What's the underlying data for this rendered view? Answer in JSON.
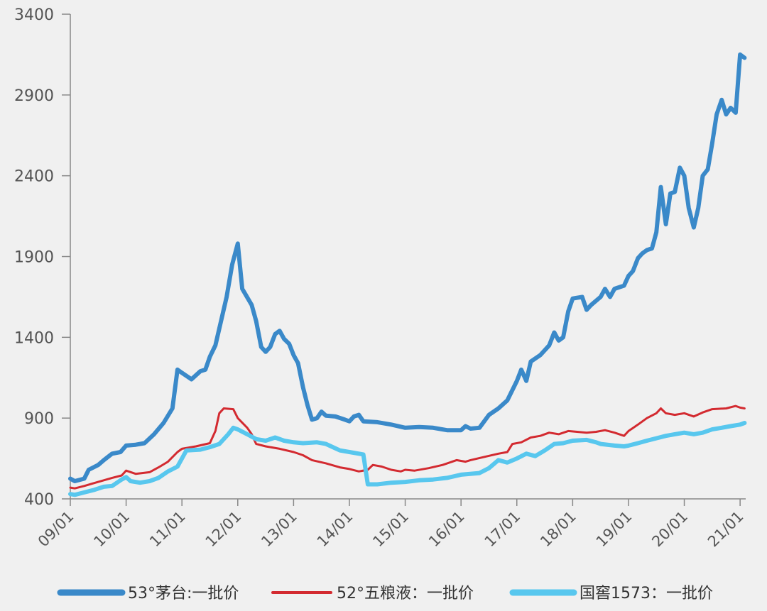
{
  "chart_data": {
    "type": "line",
    "title": "",
    "xlabel": "",
    "ylabel": "",
    "ylim": [
      400,
      3400
    ],
    "yticks": [
      "400",
      "900",
      "1400",
      "1900",
      "2400",
      "2900",
      "3400"
    ],
    "xlim": [
      2009.0,
      2021.1
    ],
    "xticks": [
      {
        "label": "09/01",
        "x": 2009.0
      },
      {
        "label": "10/01",
        "x": 2010.0
      },
      {
        "label": "11/01",
        "x": 2011.0
      },
      {
        "label": "12/01",
        "x": 2012.0
      },
      {
        "label": "13/01",
        "x": 2013.0
      },
      {
        "label": "14/01",
        "x": 2014.0
      },
      {
        "label": "15/01",
        "x": 2015.0
      },
      {
        "label": "16/01",
        "x": 2016.0
      },
      {
        "label": "17/01",
        "x": 2017.0
      },
      {
        "label": "18/01",
        "x": 2018.0
      },
      {
        "label": "19/01",
        "x": 2019.0
      },
      {
        "label": "20/01",
        "x": 2020.0
      },
      {
        "label": "21/01",
        "x": 2021.0
      }
    ],
    "legend_position": "bottom",
    "series": [
      {
        "name": "53°茅台:一批价",
        "color": "#3a89c9",
        "stroke": "thick",
        "points": [
          [
            2009.0,
            525
          ],
          [
            2009.08,
            510
          ],
          [
            2009.25,
            525
          ],
          [
            2009.33,
            580
          ],
          [
            2009.5,
            610
          ],
          [
            2009.6,
            640
          ],
          [
            2009.75,
            680
          ],
          [
            2009.9,
            690
          ],
          [
            2010.0,
            730
          ],
          [
            2010.17,
            735
          ],
          [
            2010.33,
            745
          ],
          [
            2010.5,
            800
          ],
          [
            2010.67,
            870
          ],
          [
            2010.83,
            960
          ],
          [
            2010.92,
            1200
          ],
          [
            2011.0,
            1180
          ],
          [
            2011.17,
            1140
          ],
          [
            2011.33,
            1190
          ],
          [
            2011.42,
            1200
          ],
          [
            2011.5,
            1280
          ],
          [
            2011.6,
            1350
          ],
          [
            2011.7,
            1500
          ],
          [
            2011.8,
            1650
          ],
          [
            2011.9,
            1850
          ],
          [
            2012.0,
            1980
          ],
          [
            2012.08,
            1700
          ],
          [
            2012.25,
            1600
          ],
          [
            2012.33,
            1500
          ],
          [
            2012.42,
            1340
          ],
          [
            2012.5,
            1310
          ],
          [
            2012.58,
            1340
          ],
          [
            2012.67,
            1420
          ],
          [
            2012.75,
            1440
          ],
          [
            2012.83,
            1390
          ],
          [
            2012.92,
            1360
          ],
          [
            2013.0,
            1290
          ],
          [
            2013.08,
            1240
          ],
          [
            2013.17,
            1090
          ],
          [
            2013.25,
            980
          ],
          [
            2013.33,
            890
          ],
          [
            2013.42,
            900
          ],
          [
            2013.5,
            940
          ],
          [
            2013.58,
            915
          ],
          [
            2013.75,
            910
          ],
          [
            2013.92,
            890
          ],
          [
            2014.0,
            880
          ],
          [
            2014.08,
            910
          ],
          [
            2014.17,
            920
          ],
          [
            2014.25,
            880
          ],
          [
            2014.5,
            875
          ],
          [
            2014.75,
            860
          ],
          [
            2015.0,
            840
          ],
          [
            2015.25,
            845
          ],
          [
            2015.5,
            840
          ],
          [
            2015.75,
            825
          ],
          [
            2016.0,
            825
          ],
          [
            2016.08,
            850
          ],
          [
            2016.17,
            835
          ],
          [
            2016.33,
            840
          ],
          [
            2016.5,
            920
          ],
          [
            2016.67,
            960
          ],
          [
            2016.83,
            1010
          ],
          [
            2017.0,
            1130
          ],
          [
            2017.08,
            1200
          ],
          [
            2017.17,
            1130
          ],
          [
            2017.25,
            1250
          ],
          [
            2017.42,
            1290
          ],
          [
            2017.58,
            1350
          ],
          [
            2017.67,
            1430
          ],
          [
            2017.75,
            1380
          ],
          [
            2017.83,
            1400
          ],
          [
            2017.92,
            1560
          ],
          [
            2018.0,
            1640
          ],
          [
            2018.17,
            1650
          ],
          [
            2018.25,
            1570
          ],
          [
            2018.33,
            1600
          ],
          [
            2018.5,
            1650
          ],
          [
            2018.58,
            1700
          ],
          [
            2018.67,
            1650
          ],
          [
            2018.75,
            1700
          ],
          [
            2018.92,
            1720
          ],
          [
            2019.0,
            1780
          ],
          [
            2019.08,
            1810
          ],
          [
            2019.17,
            1890
          ],
          [
            2019.25,
            1920
          ],
          [
            2019.33,
            1940
          ],
          [
            2019.42,
            1950
          ],
          [
            2019.5,
            2050
          ],
          [
            2019.58,
            2330
          ],
          [
            2019.67,
            2100
          ],
          [
            2019.75,
            2290
          ],
          [
            2019.83,
            2300
          ],
          [
            2019.92,
            2450
          ],
          [
            2020.0,
            2400
          ],
          [
            2020.08,
            2200
          ],
          [
            2020.17,
            2080
          ],
          [
            2020.25,
            2200
          ],
          [
            2020.33,
            2400
          ],
          [
            2020.42,
            2440
          ],
          [
            2020.5,
            2600
          ],
          [
            2020.58,
            2780
          ],
          [
            2020.67,
            2870
          ],
          [
            2020.75,
            2780
          ],
          [
            2020.83,
            2820
          ],
          [
            2020.92,
            2790
          ],
          [
            2021.0,
            3150
          ],
          [
            2021.08,
            3130
          ]
        ]
      },
      {
        "name": "52°五粮液：一批价",
        "color": "#d32a30",
        "stroke": "thin",
        "points": [
          [
            2009.0,
            470
          ],
          [
            2009.08,
            465
          ],
          [
            2009.25,
            480
          ],
          [
            2009.5,
            505
          ],
          [
            2009.75,
            530
          ],
          [
            2009.92,
            545
          ],
          [
            2010.0,
            575
          ],
          [
            2010.17,
            555
          ],
          [
            2010.42,
            565
          ],
          [
            2010.58,
            595
          ],
          [
            2010.75,
            630
          ],
          [
            2010.92,
            690
          ],
          [
            2011.0,
            710
          ],
          [
            2011.25,
            725
          ],
          [
            2011.5,
            745
          ],
          [
            2011.6,
            820
          ],
          [
            2011.67,
            930
          ],
          [
            2011.75,
            960
          ],
          [
            2011.92,
            955
          ],
          [
            2012.0,
            900
          ],
          [
            2012.17,
            840
          ],
          [
            2012.25,
            800
          ],
          [
            2012.33,
            740
          ],
          [
            2012.5,
            725
          ],
          [
            2012.75,
            710
          ],
          [
            2013.0,
            690
          ],
          [
            2013.17,
            670
          ],
          [
            2013.33,
            640
          ],
          [
            2013.58,
            620
          ],
          [
            2013.83,
            595
          ],
          [
            2014.0,
            585
          ],
          [
            2014.17,
            570
          ],
          [
            2014.33,
            580
          ],
          [
            2014.42,
            610
          ],
          [
            2014.58,
            600
          ],
          [
            2014.75,
            580
          ],
          [
            2014.92,
            570
          ],
          [
            2015.0,
            580
          ],
          [
            2015.17,
            575
          ],
          [
            2015.42,
            590
          ],
          [
            2015.67,
            610
          ],
          [
            2015.92,
            640
          ],
          [
            2016.08,
            630
          ],
          [
            2016.17,
            640
          ],
          [
            2016.42,
            660
          ],
          [
            2016.67,
            680
          ],
          [
            2016.83,
            690
          ],
          [
            2016.92,
            740
          ],
          [
            2017.08,
            750
          ],
          [
            2017.25,
            780
          ],
          [
            2017.42,
            790
          ],
          [
            2017.58,
            810
          ],
          [
            2017.75,
            800
          ],
          [
            2017.92,
            820
          ],
          [
            2018.08,
            815
          ],
          [
            2018.25,
            810
          ],
          [
            2018.42,
            815
          ],
          [
            2018.58,
            825
          ],
          [
            2018.75,
            810
          ],
          [
            2018.92,
            790
          ],
          [
            2019.0,
            820
          ],
          [
            2019.17,
            860
          ],
          [
            2019.33,
            900
          ],
          [
            2019.5,
            930
          ],
          [
            2019.58,
            960
          ],
          [
            2019.67,
            930
          ],
          [
            2019.83,
            920
          ],
          [
            2020.0,
            930
          ],
          [
            2020.17,
            910
          ],
          [
            2020.33,
            935
          ],
          [
            2020.5,
            955
          ],
          [
            2020.75,
            960
          ],
          [
            2020.92,
            975
          ],
          [
            2021.0,
            965
          ],
          [
            2021.08,
            960
          ]
        ]
      },
      {
        "name": "国窖1573：一批价",
        "color": "#58c7ee",
        "stroke": "thick",
        "points": [
          [
            2009.0,
            430
          ],
          [
            2009.08,
            425
          ],
          [
            2009.25,
            440
          ],
          [
            2009.42,
            455
          ],
          [
            2009.6,
            475
          ],
          [
            2009.75,
            480
          ],
          [
            2009.92,
            520
          ],
          [
            2010.0,
            535
          ],
          [
            2010.08,
            510
          ],
          [
            2010.25,
            500
          ],
          [
            2010.42,
            510
          ],
          [
            2010.58,
            530
          ],
          [
            2010.75,
            570
          ],
          [
            2010.92,
            600
          ],
          [
            2011.0,
            650
          ],
          [
            2011.08,
            700
          ],
          [
            2011.33,
            705
          ],
          [
            2011.5,
            720
          ],
          [
            2011.67,
            740
          ],
          [
            2011.83,
            800
          ],
          [
            2011.92,
            840
          ],
          [
            2012.0,
            830
          ],
          [
            2012.17,
            800
          ],
          [
            2012.33,
            770
          ],
          [
            2012.5,
            760
          ],
          [
            2012.67,
            780
          ],
          [
            2012.83,
            760
          ],
          [
            2013.0,
            750
          ],
          [
            2013.17,
            745
          ],
          [
            2013.42,
            750
          ],
          [
            2013.58,
            740
          ],
          [
            2013.83,
            700
          ],
          [
            2014.0,
            690
          ],
          [
            2014.17,
            680
          ],
          [
            2014.25,
            675
          ],
          [
            2014.33,
            490
          ],
          [
            2014.5,
            490
          ],
          [
            2014.75,
            500
          ],
          [
            2015.0,
            505
          ],
          [
            2015.25,
            515
          ],
          [
            2015.5,
            520
          ],
          [
            2015.75,
            530
          ],
          [
            2016.0,
            550
          ],
          [
            2016.33,
            560
          ],
          [
            2016.5,
            590
          ],
          [
            2016.67,
            640
          ],
          [
            2016.83,
            625
          ],
          [
            2017.0,
            650
          ],
          [
            2017.17,
            680
          ],
          [
            2017.33,
            665
          ],
          [
            2017.5,
            700
          ],
          [
            2017.67,
            740
          ],
          [
            2017.83,
            745
          ],
          [
            2018.0,
            760
          ],
          [
            2018.25,
            765
          ],
          [
            2018.42,
            750
          ],
          [
            2018.5,
            740
          ],
          [
            2018.75,
            730
          ],
          [
            2018.92,
            725
          ],
          [
            2019.0,
            730
          ],
          [
            2019.17,
            745
          ],
          [
            2019.33,
            760
          ],
          [
            2019.5,
            775
          ],
          [
            2019.67,
            790
          ],
          [
            2019.83,
            800
          ],
          [
            2020.0,
            810
          ],
          [
            2020.17,
            800
          ],
          [
            2020.33,
            810
          ],
          [
            2020.5,
            830
          ],
          [
            2020.67,
            840
          ],
          [
            2020.83,
            850
          ],
          [
            2021.0,
            860
          ],
          [
            2021.08,
            870
          ]
        ]
      }
    ]
  }
}
